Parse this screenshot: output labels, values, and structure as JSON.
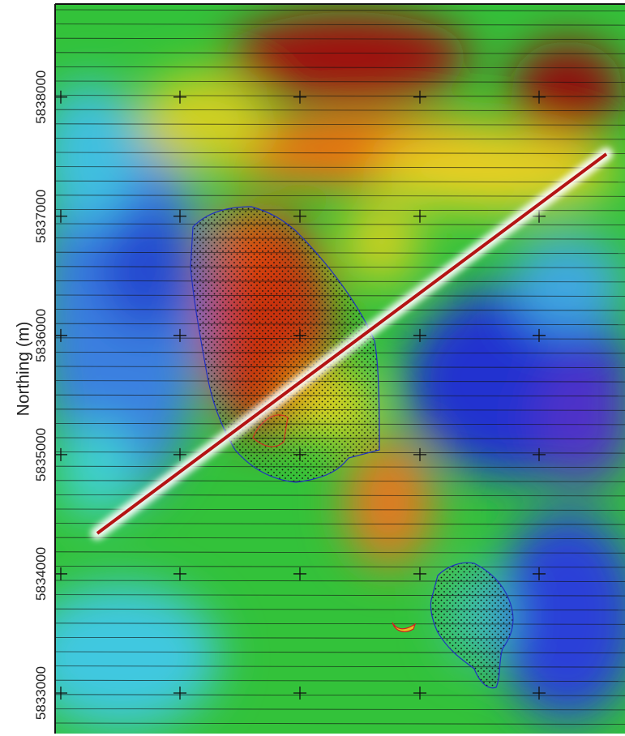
{
  "axis": {
    "label": "Northing (m)",
    "ylim": [
      5832660,
      5838780
    ],
    "ticks": [
      5833000,
      5834000,
      5835000,
      5836000,
      5837000,
      5838000
    ]
  }
}
